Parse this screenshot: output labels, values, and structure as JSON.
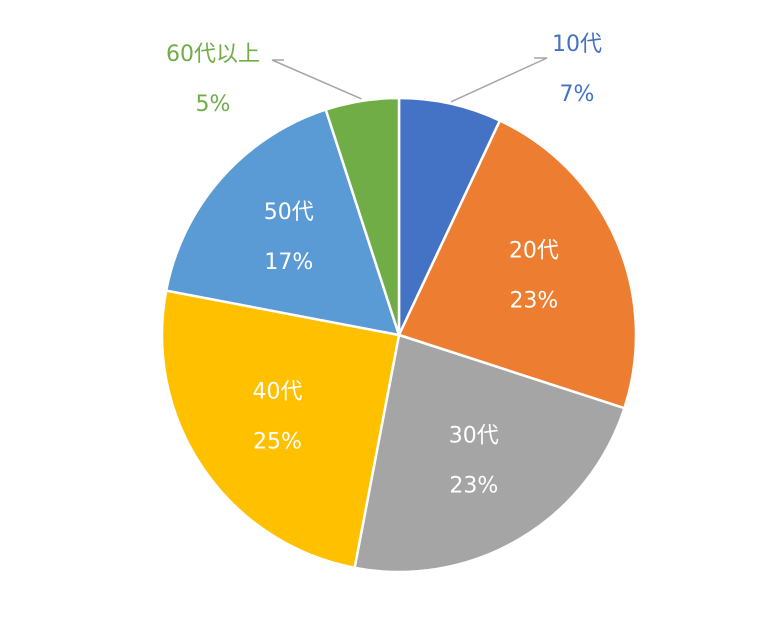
{
  "chart_data": {
    "type": "pie",
    "title": "",
    "slices": [
      {
        "category": "10代",
        "value": 7,
        "value_label": "7%",
        "color": "#4472C4",
        "label_color": "#4472C4",
        "label_position": "outside"
      },
      {
        "category": "20代",
        "value": 23,
        "value_label": "23%",
        "color": "#ED7D31",
        "label_color": "#FFFFFF",
        "label_position": "inside"
      },
      {
        "category": "30代",
        "value": 23,
        "value_label": "23%",
        "color": "#A5A5A5",
        "label_color": "#FFFFFF",
        "label_position": "inside"
      },
      {
        "category": "40代",
        "value": 25,
        "value_label": "25%",
        "color": "#FFC000",
        "label_color": "#FFFFFF",
        "label_position": "inside"
      },
      {
        "category": "50代",
        "value": 17,
        "value_label": "17%",
        "color": "#5B9BD5",
        "label_color": "#FFFFFF",
        "label_position": "inside"
      },
      {
        "category": "60代以上",
        "value": 5,
        "value_label": "5%",
        "color": "#70AD47",
        "label_color": "#70AD47",
        "label_position": "outside"
      }
    ],
    "start_angle_deg": 0,
    "direction": "clockwise",
    "legend": "none"
  }
}
